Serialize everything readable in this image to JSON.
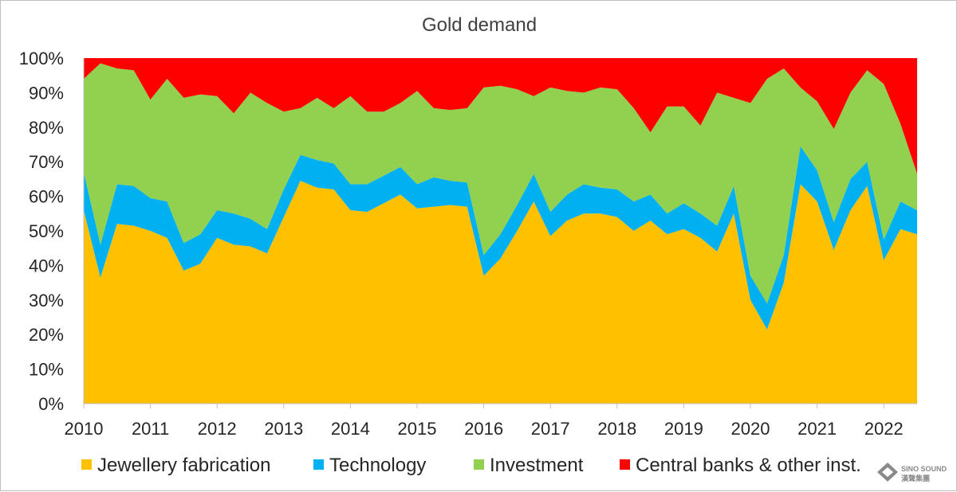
{
  "chart_data": {
    "type": "area",
    "stacked": "percent",
    "title": "Gold demand",
    "xlabel": "",
    "ylabel": "",
    "ylim": [
      0,
      100
    ],
    "y_ticks": [
      "0%",
      "10%",
      "20%",
      "30%",
      "40%",
      "50%",
      "60%",
      "70%",
      "80%",
      "90%",
      "100%"
    ],
    "x_range": [
      2010,
      2022.5
    ],
    "x_ticks": [
      "2010",
      "2011",
      "2012",
      "2013",
      "2014",
      "2015",
      "2016",
      "2017",
      "2018",
      "2019",
      "2020",
      "2021",
      "2022"
    ],
    "grid": false,
    "legend": "bottom",
    "x": [
      2010,
      2010.25,
      2010.5,
      2010.75,
      2011,
      2011.25,
      2011.5,
      2011.75,
      2012,
      2012.25,
      2012.5,
      2012.75,
      2013,
      2013.25,
      2013.5,
      2013.75,
      2014,
      2014.25,
      2014.5,
      2014.75,
      2015,
      2015.25,
      2015.5,
      2015.75,
      2016,
      2016.25,
      2016.5,
      2016.75,
      2017,
      2017.25,
      2017.5,
      2017.75,
      2018,
      2018.25,
      2018.5,
      2018.75,
      2019,
      2019.25,
      2019.5,
      2019.75,
      2020,
      2020.25,
      2020.5,
      2020.75,
      2021,
      2021.25,
      2021.5,
      2021.75,
      2022,
      2022.25,
      2022.5
    ],
    "series": [
      {
        "name": "Jewellery fabrication",
        "color": "#ffc000",
        "values": [
          56,
          36.5,
          52,
          51.5,
          50,
          48,
          38.5,
          40.5,
          48,
          46,
          45.5,
          43.5,
          54,
          64.5,
          62.5,
          62,
          56,
          55.5,
          58,
          60.5,
          56.5,
          57,
          57.5,
          57,
          37,
          42,
          50,
          58.5,
          48.5,
          53,
          55,
          55,
          54,
          50,
          53,
          49,
          50.5,
          48,
          44,
          55,
          30,
          21.5,
          35,
          63.5,
          58.5,
          44.5,
          56,
          63,
          41.5,
          50.5,
          49
        ]
      },
      {
        "name": "Technology",
        "color": "#00b0f0",
        "values": [
          11,
          9.5,
          11.5,
          11.5,
          9.5,
          10.5,
          8,
          8.5,
          8,
          9,
          8,
          7,
          8,
          7.5,
          8,
          7.5,
          7.5,
          8,
          8,
          8,
          7,
          8.5,
          7,
          7,
          6,
          7,
          7.5,
          8,
          7,
          7.5,
          8.5,
          7.5,
          8,
          8.5,
          7.5,
          6,
          7.5,
          7,
          7.5,
          8,
          7,
          7.5,
          8,
          11,
          9,
          8,
          9,
          7,
          6,
          8,
          7
        ]
      },
      {
        "name": "Investment",
        "color": "#92d050",
        "values": [
          27,
          52.5,
          33.5,
          33.5,
          28.5,
          35.5,
          42,
          40.5,
          33,
          29,
          36.5,
          36.5,
          22.5,
          13.5,
          18,
          16,
          25.5,
          21,
          18.5,
          18.5,
          27,
          20,
          20.5,
          21.5,
          48.5,
          43,
          33.5,
          22.5,
          36,
          30,
          26.5,
          29,
          29,
          27,
          18,
          31,
          28,
          25.5,
          38.5,
          25.5,
          50,
          65,
          54,
          17,
          20,
          27,
          25,
          26.5,
          45,
          22.5,
          10.5
        ]
      },
      {
        "name": "Central banks & other inst.",
        "color": "#ff0000",
        "values": [
          6,
          1.5,
          3,
          3.5,
          12,
          6,
          11.5,
          10.5,
          11,
          16,
          10,
          13,
          15.5,
          14.5,
          11.5,
          14.5,
          11,
          15.5,
          15.5,
          13,
          9.5,
          14.5,
          15,
          14.5,
          8.5,
          8,
          9,
          11,
          8.5,
          9.5,
          10,
          8.5,
          9,
          14.5,
          21.5,
          14,
          14,
          19.5,
          10,
          11.5,
          13,
          6,
          3,
          8.5,
          12.5,
          20.5,
          10,
          3.5,
          7.5,
          19,
          33.5
        ]
      }
    ]
  },
  "watermark": {
    "brand": "SINO SOUND",
    "sub": "漢聲集團"
  }
}
